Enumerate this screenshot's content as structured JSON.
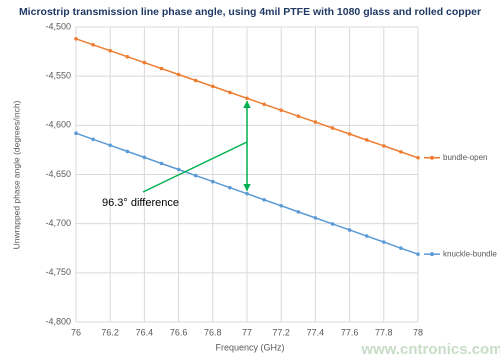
{
  "chart_data": {
    "type": "line",
    "title": "Microstrip transmission line phase angle, using 4mil PTFE with 1080 glass and rolled copper",
    "x_label": "Frequency (GHz)",
    "y_label": "Unwrapped phase angle (degrees/inch)",
    "annotation": "96.3° difference",
    "watermark": "www.cntronics.com",
    "x": [
      76,
      76.1,
      76.2,
      76.3,
      76.4,
      76.5,
      76.6,
      76.7,
      76.8,
      76.9,
      77,
      77.1,
      77.2,
      77.3,
      77.4,
      77.5,
      77.6,
      77.7,
      77.8,
      77.9,
      78
    ],
    "series": [
      {
        "name": "bundle-open",
        "color": "#ed7d31",
        "values": [
          -4512,
          -4518.1,
          -4524.1,
          -4530.2,
          -4536.2,
          -4542.3,
          -4548.3,
          -4554.4,
          -4560.4,
          -4566.5,
          -4572.5,
          -4578.6,
          -4584.6,
          -4590.7,
          -4596.7,
          -4602.8,
          -4608.8,
          -4614.9,
          -4620.9,
          -4627.0,
          -4633
        ]
      },
      {
        "name": "knuckle-bundle",
        "color": "#5b9bd5",
        "values": [
          -4608,
          -4614.2,
          -4620.3,
          -4626.5,
          -4632.6,
          -4638.8,
          -4644.9,
          -4651.1,
          -4657.2,
          -4663.4,
          -4669.5,
          -4675.7,
          -4681.8,
          -4688.0,
          -4694.1,
          -4700.3,
          -4706.4,
          -4712.6,
          -4718.7,
          -4724.9,
          -4731
        ]
      }
    ],
    "xlim": [
      76,
      78
    ],
    "xticks": [
      76,
      76.2,
      76.4,
      76.6,
      76.8,
      77,
      77.2,
      77.4,
      77.6,
      77.8,
      78
    ],
    "ylim": [
      -4800,
      -4500
    ],
    "yticks": [
      {
        "value": -4800,
        "label": "-4,800"
      },
      {
        "value": -4750,
        "label": "-4,750"
      },
      {
        "value": -4700,
        "label": "-4,700"
      },
      {
        "value": -4650,
        "label": "-4,650"
      },
      {
        "value": -4600,
        "label": "-4,600"
      },
      {
        "value": -4550,
        "label": "-4,550"
      },
      {
        "value": -4500,
        "label": "-4,500"
      }
    ],
    "grid": true
  }
}
